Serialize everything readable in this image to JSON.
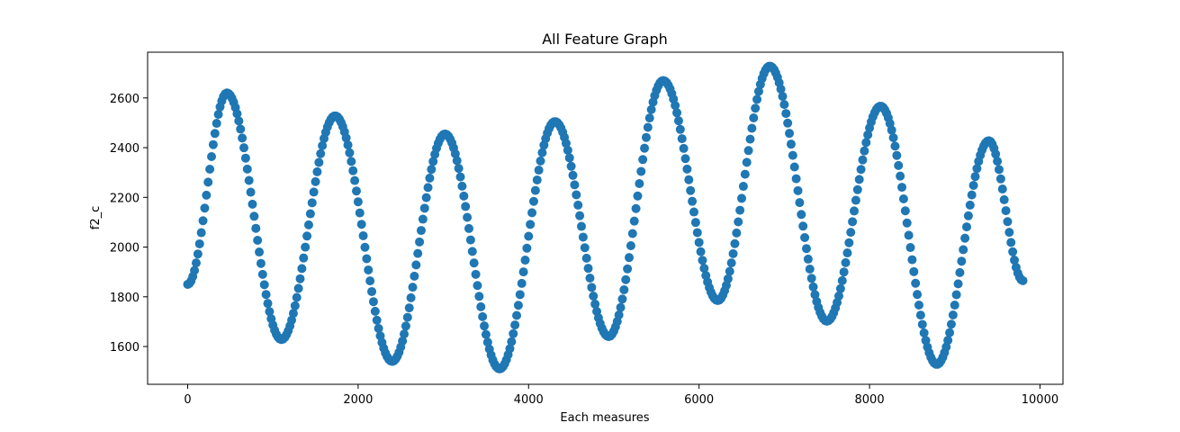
{
  "chart_data": {
    "type": "scatter",
    "title": "All Feature Graph",
    "xlabel": "Each measures",
    "ylabel": "f2_c",
    "xlim": [
      -470,
      10270
    ],
    "ylim": [
      1448,
      2784
    ],
    "xticks": [
      0,
      2000,
      4000,
      6000,
      8000,
      10000
    ],
    "yticks": [
      1600,
      1800,
      2000,
      2200,
      2400,
      2600
    ],
    "xtick_labels": [
      "0",
      "2000",
      "4000",
      "6000",
      "8000",
      "10000"
    ],
    "ytick_labels": [
      "1600",
      "1800",
      "2000",
      "2200",
      "2400",
      "2600"
    ],
    "grid": false,
    "legend": "none",
    "color": "#1f77b4",
    "x_range": [
      0,
      9800
    ],
    "n_points": 9800,
    "series": [
      {
        "extrema": [
          {
            "x": 0,
            "y": 1850
          },
          {
            "x": 460,
            "y": 2620
          },
          {
            "x": 1100,
            "y": 1628
          },
          {
            "x": 1730,
            "y": 2528
          },
          {
            "x": 2400,
            "y": 1540
          },
          {
            "x": 3020,
            "y": 2455
          },
          {
            "x": 3660,
            "y": 1510
          },
          {
            "x": 4310,
            "y": 2505
          },
          {
            "x": 4940,
            "y": 1640
          },
          {
            "x": 5580,
            "y": 2670
          },
          {
            "x": 6220,
            "y": 1785
          },
          {
            "x": 6830,
            "y": 2728
          },
          {
            "x": 7500,
            "y": 1702
          },
          {
            "x": 8130,
            "y": 2567
          },
          {
            "x": 8790,
            "y": 1528
          },
          {
            "x": 9400,
            "y": 2428
          },
          {
            "x": 9800,
            "y": 1865
          }
        ]
      }
    ]
  }
}
